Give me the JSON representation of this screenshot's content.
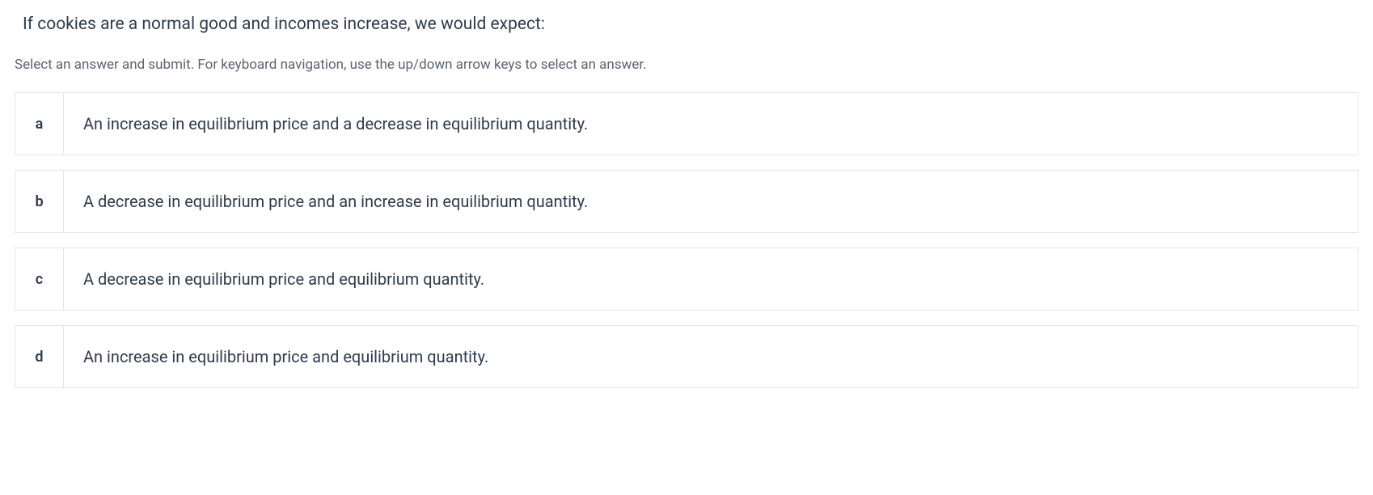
{
  "question": {
    "text": "If cookies are a normal good and incomes increase, we would expect:",
    "fontsize": 21,
    "color": "#2e3b4e"
  },
  "instruction": {
    "text": "Select an answer and submit. For keyboard navigation, use the up/down arrow keys to select an answer.",
    "fontsize": 17,
    "color": "#5a6472"
  },
  "options": [
    {
      "letter": "a",
      "text": "An increase in equilibrium price and a decrease in equilibrium quantity."
    },
    {
      "letter": "b",
      "text": "A decrease in equilibrium price and an increase in equilibrium quantity."
    },
    {
      "letter": "c",
      "text": "A decrease in equilibrium price and equilibrium quantity."
    },
    {
      "letter": "d",
      "text": "An increase in equilibrium price and equilibrium quantity."
    }
  ],
  "styling": {
    "background_color": "#ffffff",
    "border_color": "#e3e6ea",
    "text_color": "#2e3b4e",
    "option_height": 78,
    "letter_cell_width": 60,
    "option_fontsize": 20,
    "letter_fontsize": 18,
    "letter_fontweight": 600,
    "gap_between_options": 18
  }
}
